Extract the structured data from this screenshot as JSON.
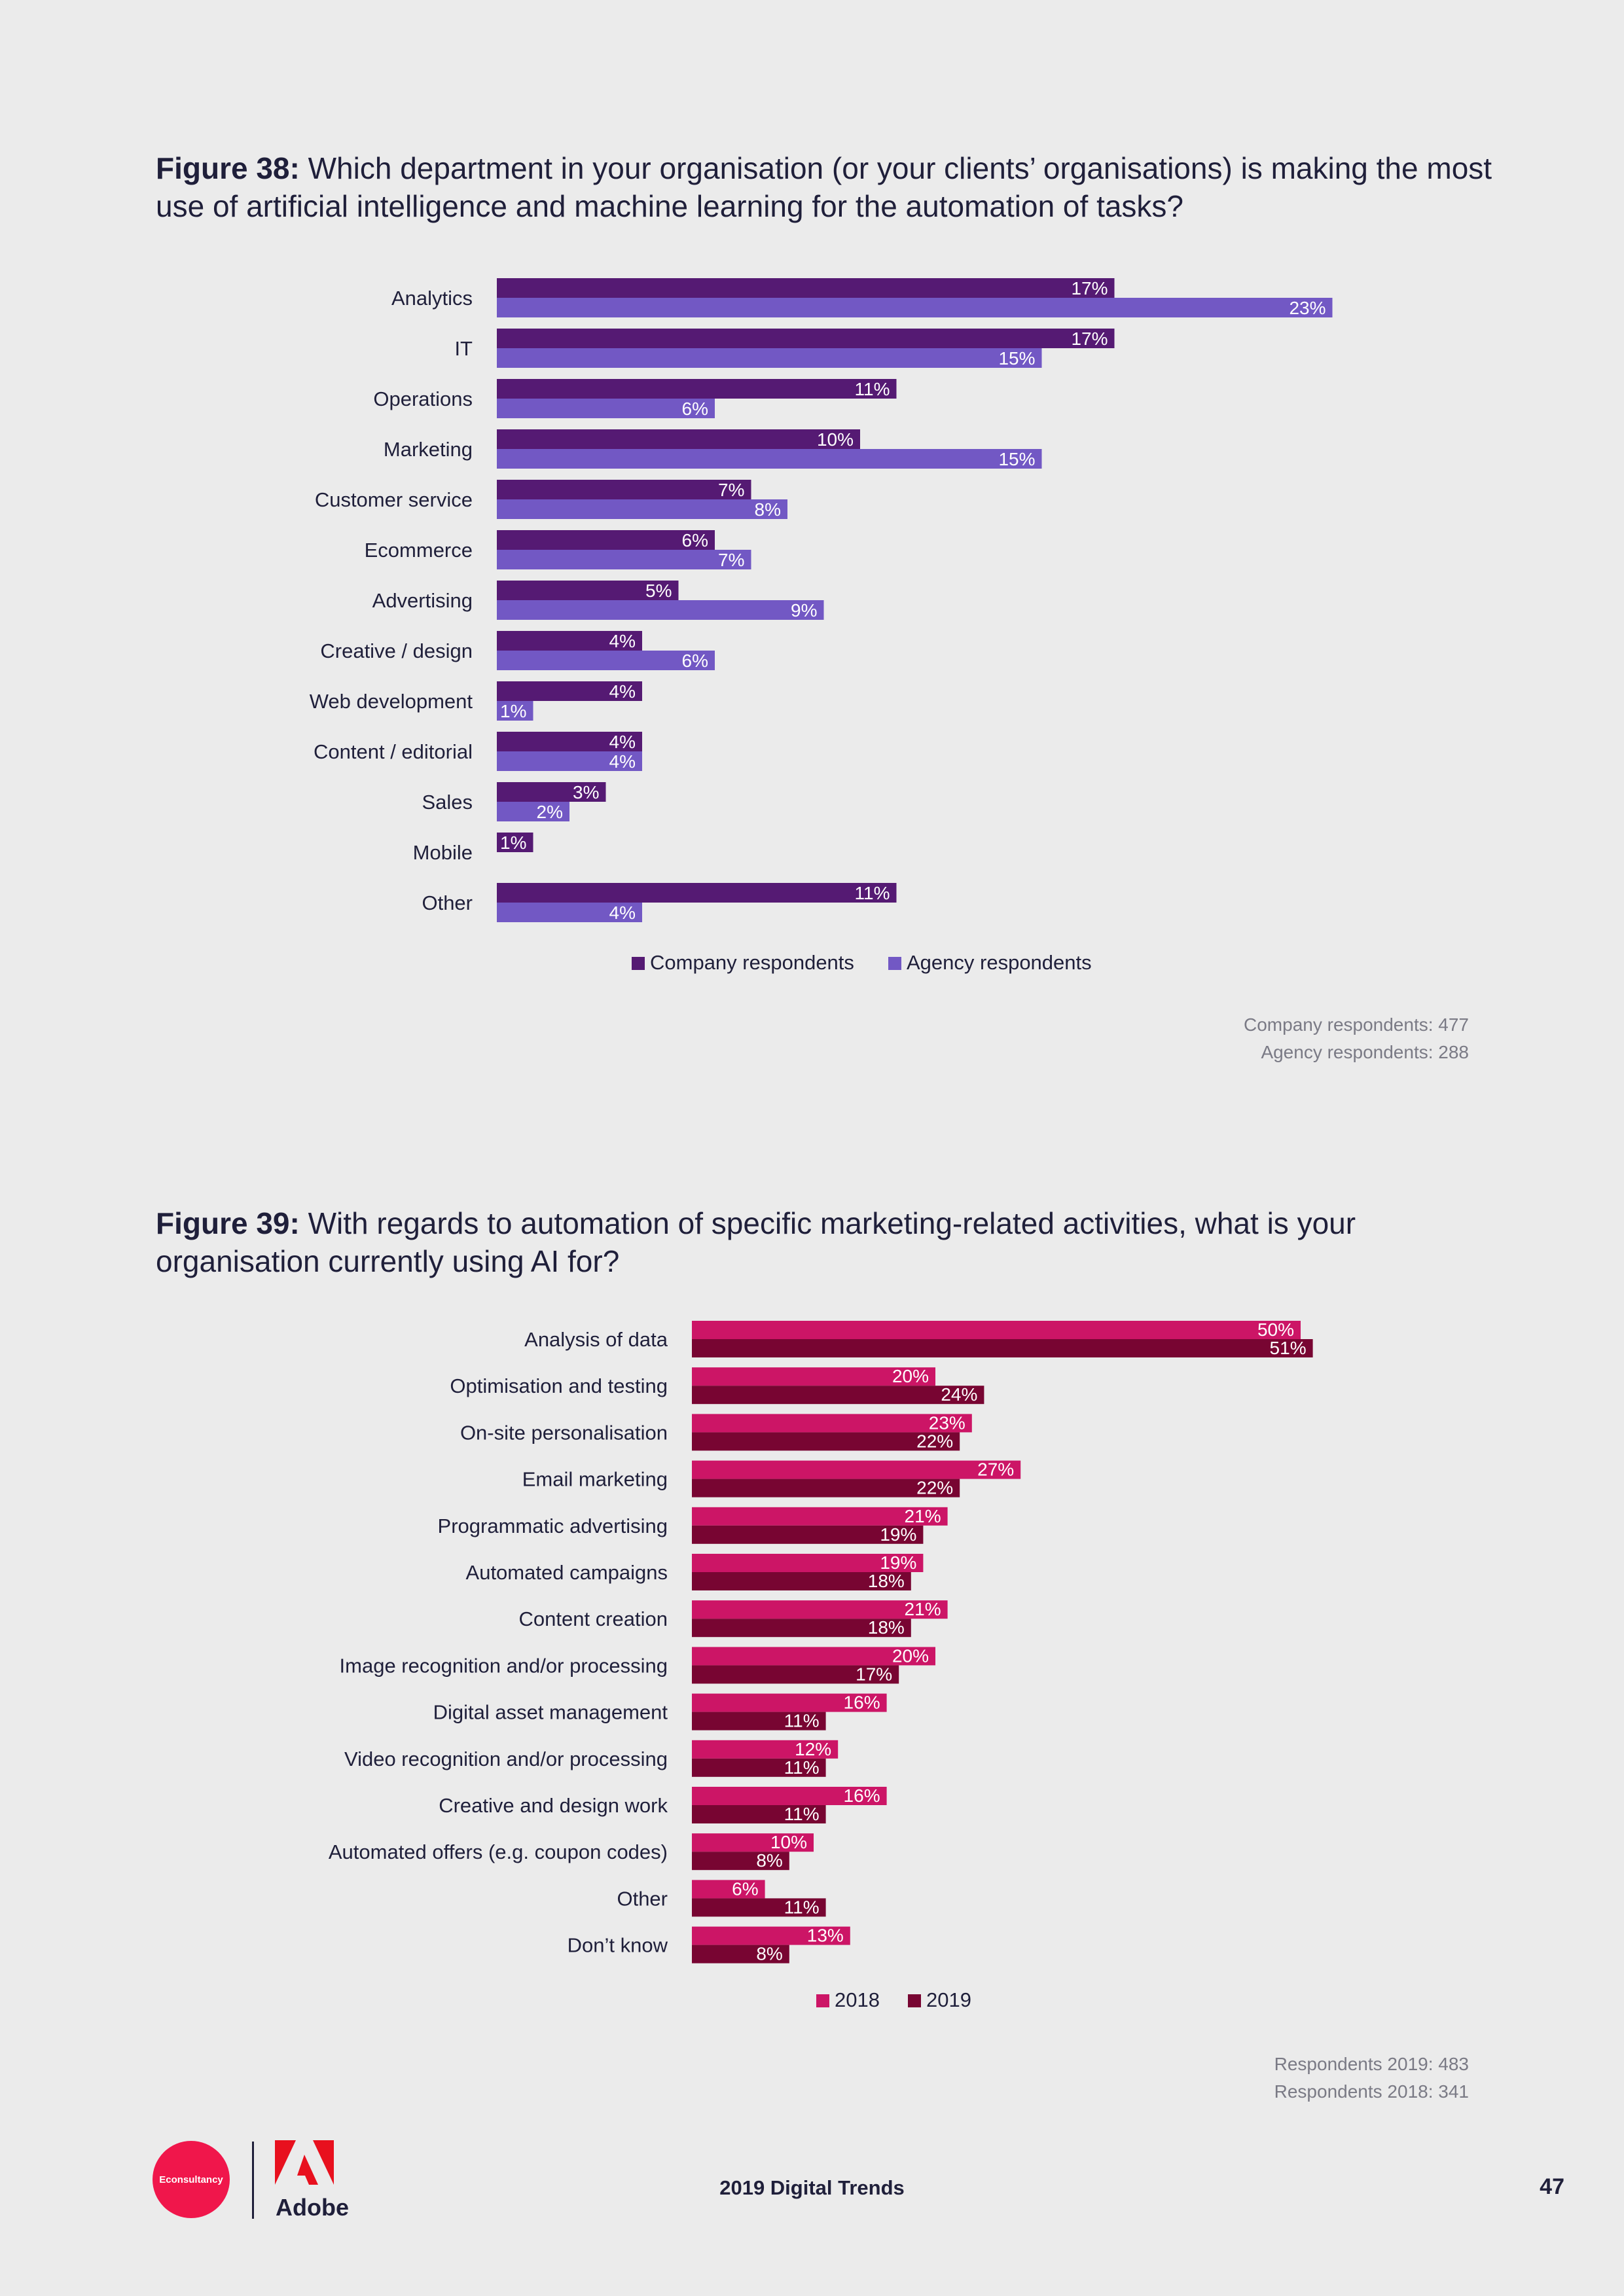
{
  "figure38": {
    "title_bold": "Figure 38:",
    "title_rest": " Which department in your organisation (or your clients’ organisations) is making the most use of artificial intelligence and machine learning for the automation of tasks?",
    "notes": [
      "Company respondents: 477",
      "Agency respondents: 288"
    ]
  },
  "figure39": {
    "title_bold": "Figure 39:",
    "title_rest": " With regards to automation of specific marketing-related activities, what is your organisation currently using AI for?",
    "notes": [
      "Respondents 2019: 483",
      "Respondents 2018: 341"
    ]
  },
  "chart_data": [
    {
      "type": "bar",
      "orientation": "horizontal",
      "categories": [
        "Analytics",
        "IT",
        "Operations",
        "Marketing",
        "Customer service",
        "Ecommerce",
        "Advertising",
        "Creative / design",
        "Web development",
        "Content / editorial",
        "Sales",
        "Mobile",
        "Other"
      ],
      "series": [
        {
          "name": "Company respondents",
          "color": "#551a73",
          "values": [
            17,
            17,
            11,
            10,
            7,
            6,
            5,
            4,
            4,
            4,
            3,
            1,
            11
          ]
        },
        {
          "name": "Agency respondents",
          "color": "#7258c4",
          "values": [
            23,
            15,
            6,
            15,
            8,
            7,
            9,
            6,
            1,
            4,
            2,
            null,
            4
          ]
        }
      ],
      "value_suffix": "%",
      "legend": "bottom"
    },
    {
      "type": "bar",
      "orientation": "horizontal",
      "categories": [
        "Analysis of data",
        "Optimisation and testing",
        "On-site personalisation",
        "Email marketing",
        "Programmatic advertising",
        "Automated campaigns",
        "Content creation",
        "Image recognition and/or processing",
        "Digital asset management",
        "Video recognition and/or processing",
        "Creative and design work",
        "Automated offers (e.g. coupon codes)",
        "Other",
        "Don’t know"
      ],
      "series": [
        {
          "name": "2018",
          "color": "#cc1566",
          "values": [
            50,
            20,
            23,
            27,
            21,
            19,
            21,
            20,
            16,
            12,
            16,
            10,
            6,
            13
          ]
        },
        {
          "name": "2019",
          "color": "#780532",
          "values": [
            51,
            24,
            22,
            22,
            19,
            18,
            18,
            17,
            11,
            11,
            11,
            8,
            11,
            8
          ]
        }
      ],
      "value_suffix": "%",
      "legend": "bottom"
    }
  ],
  "footer": {
    "logo_text": "Econsultancy",
    "brand": "Adobe",
    "center": "2019 Digital Trends",
    "page_number": "47"
  }
}
